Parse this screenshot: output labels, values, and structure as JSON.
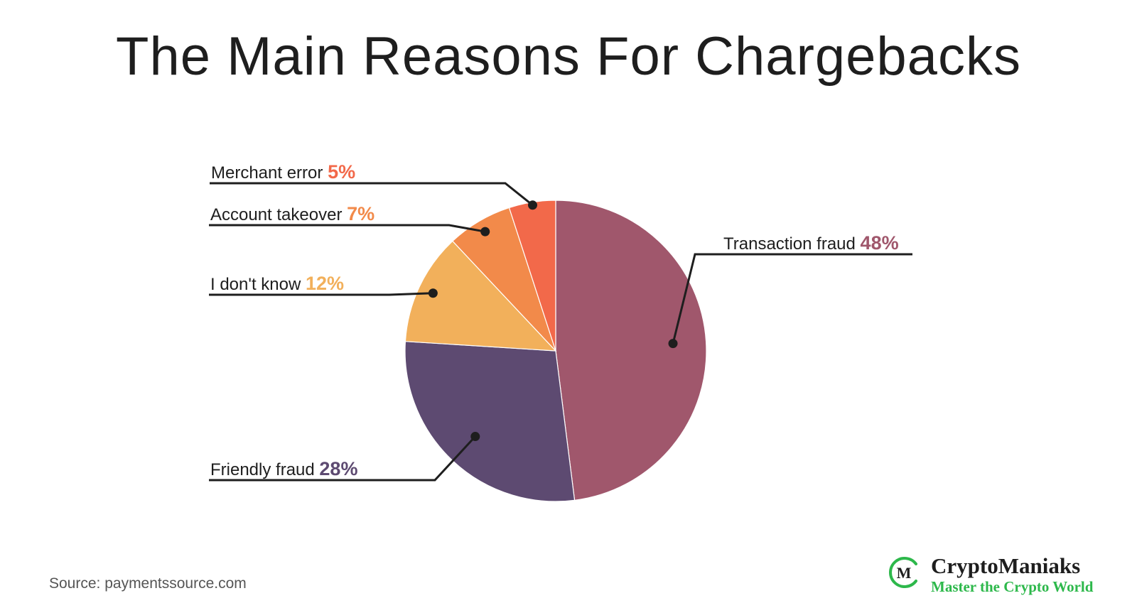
{
  "title": "The Main Reasons For Chargebacks",
  "chart_data": {
    "type": "pie",
    "title": "The Main Reasons For Chargebacks",
    "slices": [
      {
        "label": "Transaction fraud",
        "value": 48,
        "value_label": "48%",
        "color": "#a0576c"
      },
      {
        "label": "Friendly fraud",
        "value": 28,
        "value_label": "28%",
        "color": "#5d4a71"
      },
      {
        "label": "I don't know",
        "value": 12,
        "value_label": "12%",
        "color": "#f2b05b"
      },
      {
        "label": "Account takeover",
        "value": 7,
        "value_label": "7%",
        "color": "#f28a4a"
      },
      {
        "label": "Merchant error",
        "value": 5,
        "value_label": "5%",
        "color": "#f2694a"
      }
    ],
    "start": "12 o'clock",
    "direction": "clockwise",
    "legend": "none"
  },
  "source": "Source: paymentssource.com",
  "brand": {
    "name": "CryptoManiaks",
    "tagline": "Master the Crypto World",
    "mark_letter": "M",
    "mark_color": "#2db84b"
  }
}
